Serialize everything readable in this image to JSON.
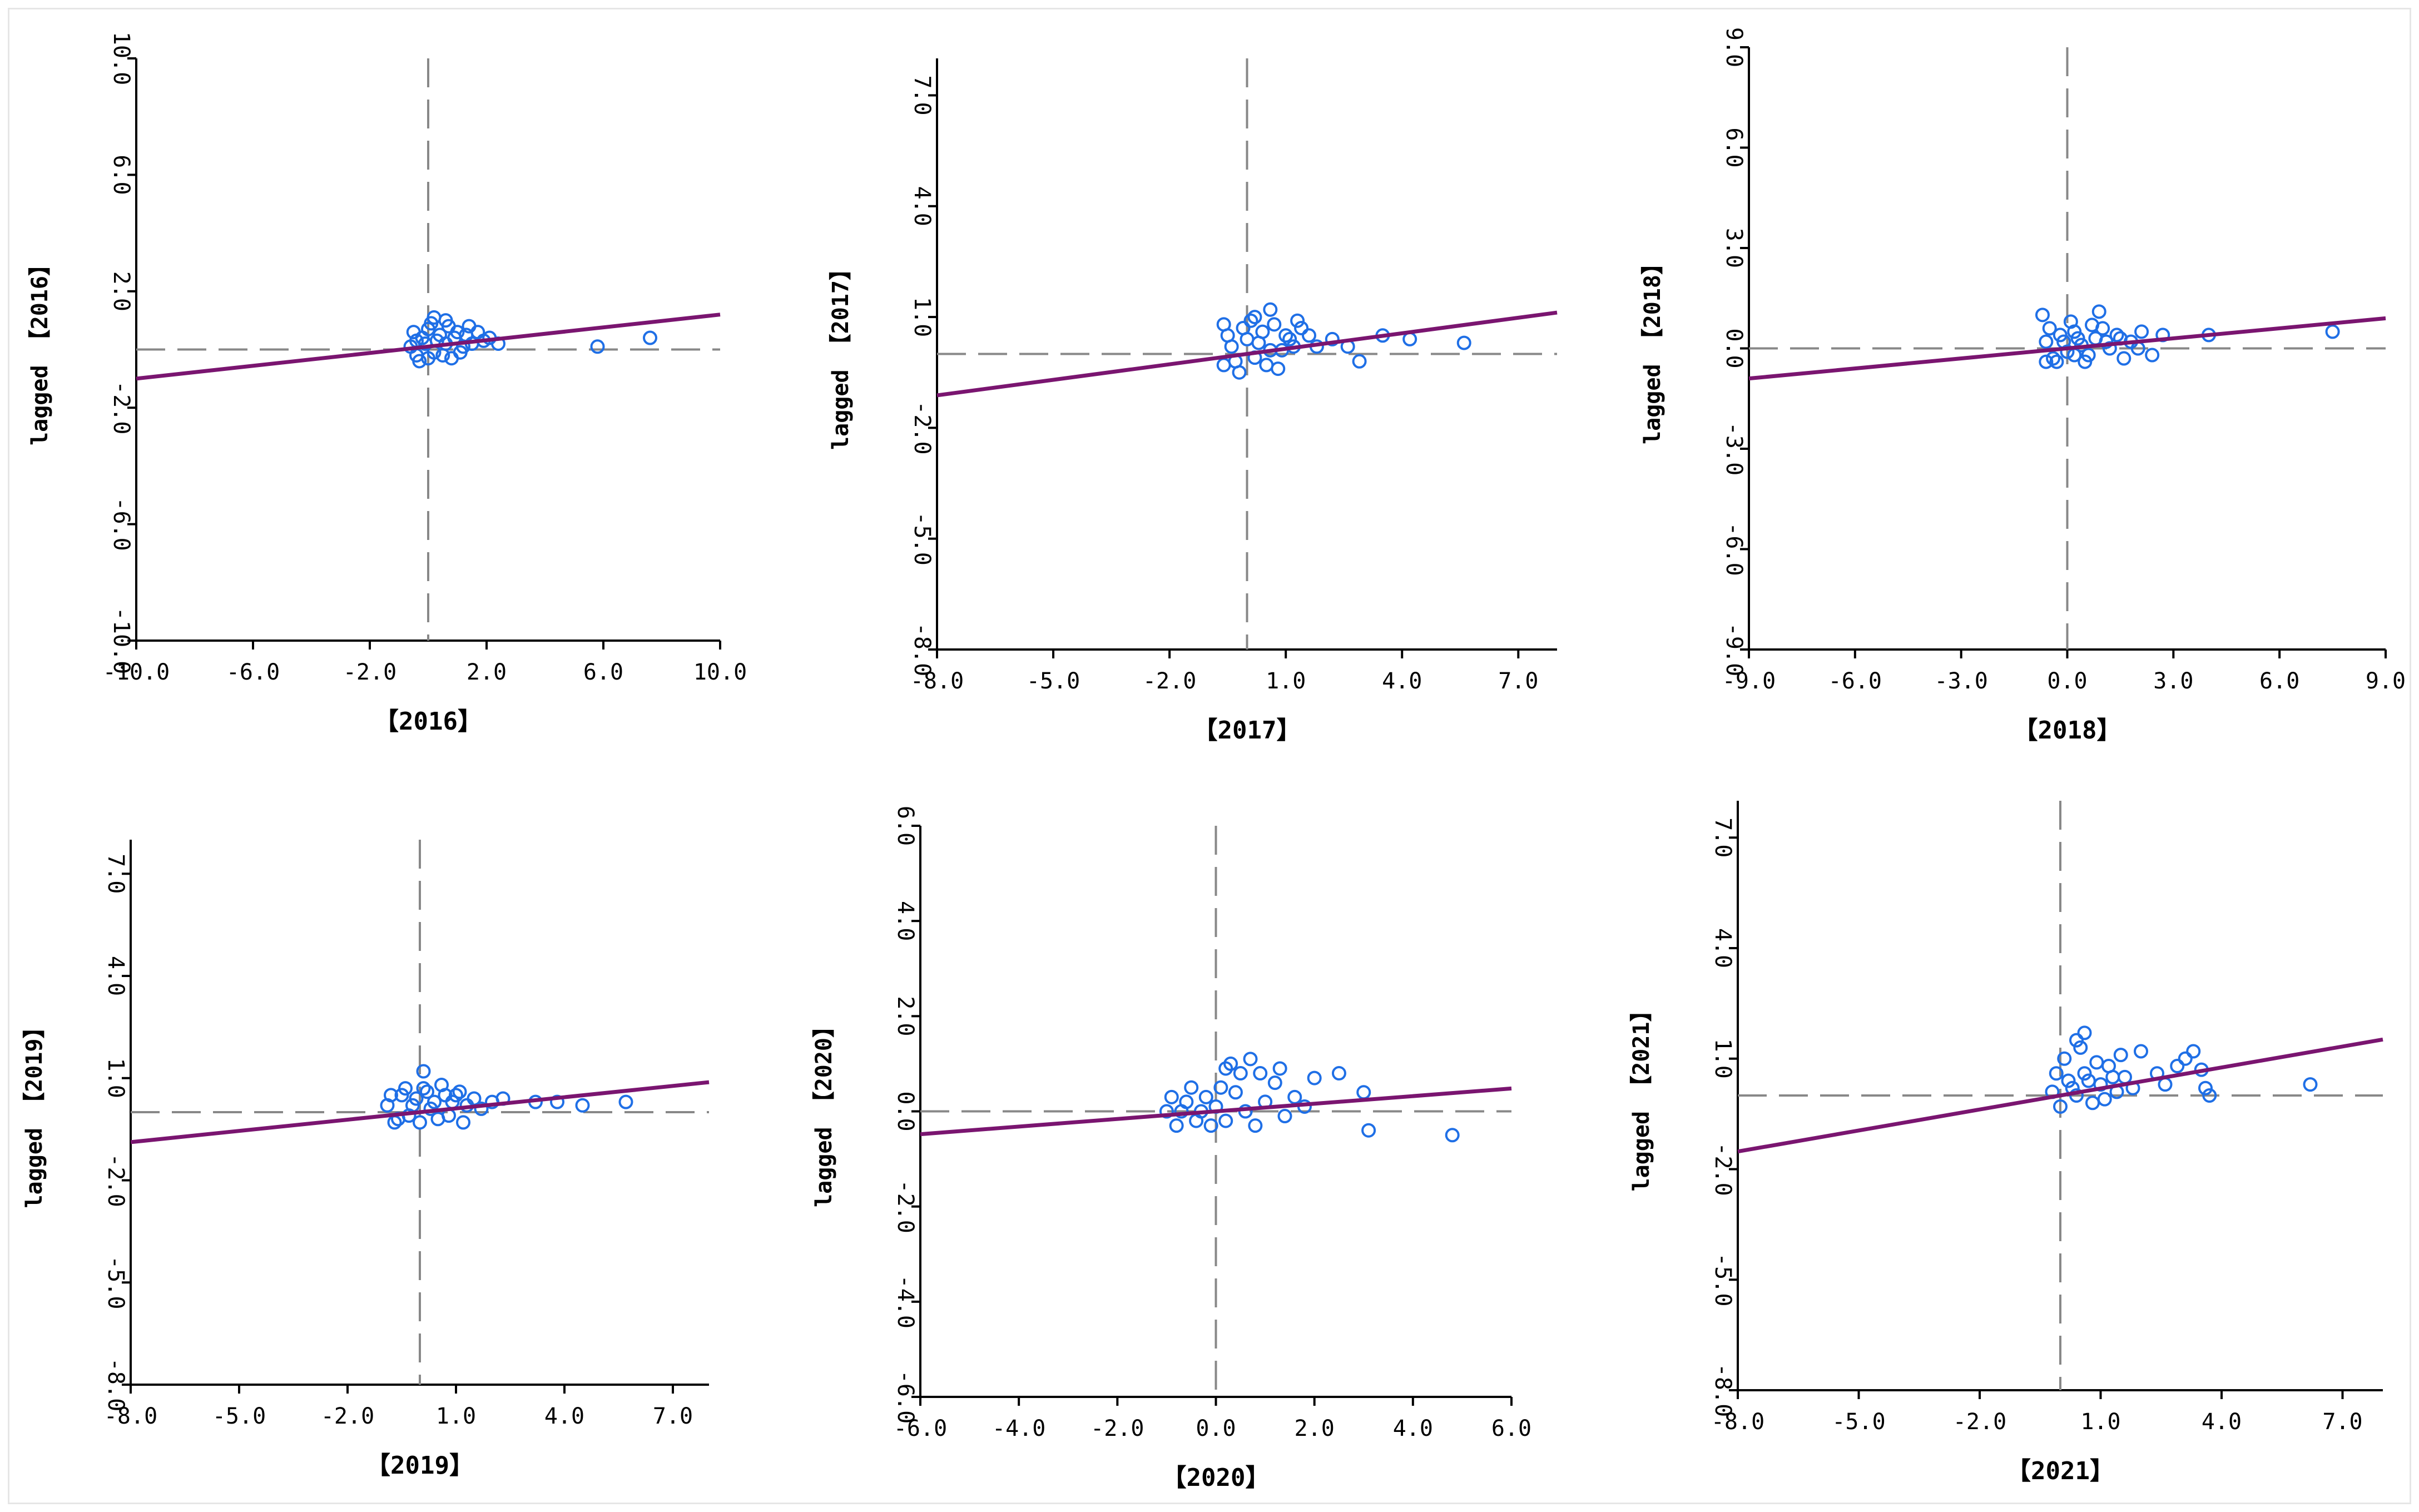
{
  "colors": {
    "points": "#1f6fe6",
    "trend": "#7a1570",
    "ref": "#888888",
    "axis": "#000000"
  },
  "chart_data": [
    {
      "type": "scatter",
      "xlabel": "【2016】",
      "ylabel": "lagged 【2016】",
      "xlim": [
        -10,
        10
      ],
      "ylim": [
        -10,
        10
      ],
      "xticks": [
        "-10.0",
        "-6.0",
        "-2.0",
        "2.0",
        "6.0",
        "10.0"
      ],
      "yticks": [
        "-10.0",
        "-6.0",
        "-2.0",
        "2.0",
        "6.0",
        "10.0"
      ],
      "slope": 0.11,
      "intercept": 0.1,
      "points": [
        [
          -0.6,
          0.1
        ],
        [
          -0.4,
          -0.2
        ],
        [
          -0.2,
          0.4
        ],
        [
          0,
          0.7
        ],
        [
          0.2,
          -0.1
        ],
        [
          0.4,
          0.5
        ],
        [
          0.6,
          0.2
        ],
        [
          0.8,
          -0.3
        ],
        [
          1,
          0.6
        ],
        [
          1.2,
          0.1
        ],
        [
          -0.5,
          0.6
        ],
        [
          -0.3,
          -0.4
        ],
        [
          0.1,
          0.9
        ],
        [
          0.3,
          0.3
        ],
        [
          0.5,
          -0.2
        ],
        [
          0.7,
          0.8
        ],
        [
          0.9,
          0.4
        ],
        [
          1.1,
          -0.1
        ],
        [
          1.3,
          0.5
        ],
        [
          1.5,
          0.2
        ],
        [
          1.7,
          0.6
        ],
        [
          1.9,
          0.3
        ],
        [
          2.1,
          0.4
        ],
        [
          2.4,
          0.2
        ],
        [
          -0.1,
          0.2
        ],
        [
          0.0,
          -0.3
        ],
        [
          0.6,
          1.0
        ],
        [
          1.4,
          0.8
        ],
        [
          -0.4,
          0.3
        ],
        [
          0.2,
          1.1
        ],
        [
          5.8,
          0.1
        ],
        [
          7.6,
          0.4
        ]
      ]
    },
    {
      "type": "scatter",
      "xlabel": "【2017】",
      "ylabel": "lagged 【2017】",
      "xlim": [
        -8,
        8
      ],
      "ylim": [
        -8,
        8
      ],
      "xticks": [
        "-8.0",
        "-5.0",
        "-2.0",
        "1.0",
        "4.0",
        "7.0"
      ],
      "yticks": [
        "-8.0",
        "-5.0",
        "-2.0",
        "1.0",
        "4.0",
        "7.0"
      ],
      "slope": 0.14,
      "intercept": 0.0,
      "points": [
        [
          -0.6,
          -0.3
        ],
        [
          -0.4,
          0.2
        ],
        [
          -0.2,
          -0.5
        ],
        [
          0,
          0.4
        ],
        [
          0.2,
          -0.1
        ],
        [
          0.4,
          0.6
        ],
        [
          0.6,
          0.1
        ],
        [
          0.8,
          -0.4
        ],
        [
          1,
          0.5
        ],
        [
          1.2,
          0.2
        ],
        [
          1.4,
          0.7
        ],
        [
          -0.5,
          0.5
        ],
        [
          -0.3,
          -0.2
        ],
        [
          0.1,
          0.9
        ],
        [
          0.3,
          0.3
        ],
        [
          0.5,
          -0.3
        ],
        [
          0.7,
          0.8
        ],
        [
          0.9,
          0.1
        ],
        [
          1.1,
          0.4
        ],
        [
          1.3,
          0.9
        ],
        [
          1.6,
          0.5
        ],
        [
          -0.1,
          0.7
        ],
        [
          0.2,
          1.0
        ],
        [
          0.6,
          1.2
        ],
        [
          -0.6,
          0.8
        ],
        [
          1.8,
          0.2
        ],
        [
          2.2,
          0.4
        ],
        [
          2.6,
          0.2
        ],
        [
          3.5,
          0.5
        ],
        [
          4.2,
          0.4
        ],
        [
          5.6,
          0.3
        ],
        [
          2.9,
          -0.2
        ]
      ]
    },
    {
      "type": "scatter",
      "xlabel": "【2018】",
      "ylabel": "lagged 【2018】",
      "xlim": [
        -9,
        9
      ],
      "ylim": [
        -9,
        9
      ],
      "xticks": [
        "-9.0",
        "-6.0",
        "-3.0",
        "0.0",
        "3.0",
        "6.0",
        "9.0"
      ],
      "yticks": [
        "-9.0",
        "-6.0",
        "-3.0",
        "0.0",
        "3.0",
        "6.0",
        "9.0"
      ],
      "slope": 0.1,
      "intercept": 0.0,
      "points": [
        [
          -0.6,
          0.2
        ],
        [
          -0.4,
          -0.3
        ],
        [
          -0.2,
          0.4
        ],
        [
          0,
          -0.1
        ],
        [
          0.2,
          0.5
        ],
        [
          0.4,
          0.1
        ],
        [
          0.6,
          -0.2
        ],
        [
          0.8,
          0.3
        ],
        [
          1,
          0.6
        ],
        [
          1.2,
          0.0
        ],
        [
          1.4,
          0.4
        ],
        [
          1.6,
          -0.3
        ],
        [
          1.8,
          0.2
        ],
        [
          2.1,
          0.5
        ],
        [
          2.4,
          -0.2
        ],
        [
          2.7,
          0.4
        ],
        [
          -0.5,
          0.6
        ],
        [
          -0.3,
          -0.4
        ],
        [
          0.1,
          0.8
        ],
        [
          0.3,
          0.3
        ],
        [
          0.5,
          -0.4
        ],
        [
          0.7,
          0.7
        ],
        [
          0.9,
          1.1
        ],
        [
          1.1,
          0.2
        ],
        [
          -0.1,
          0.2
        ],
        [
          0.2,
          -0.2
        ],
        [
          -0.6,
          -0.4
        ],
        [
          1.5,
          0.3
        ],
        [
          2.0,
          0.0
        ],
        [
          4.0,
          0.4
        ],
        [
          7.5,
          0.5
        ],
        [
          -0.7,
          1.0
        ]
      ]
    },
    {
      "type": "scatter",
      "xlabel": "【2019】",
      "ylabel": "lagged 【2019】",
      "xlim": [
        -8,
        8
      ],
      "ylim": [
        -8,
        8
      ],
      "xticks": [
        "-8.0",
        "-5.0",
        "-2.0",
        "1.0",
        "4.0",
        "7.0"
      ],
      "yticks": [
        "-8.0",
        "-5.0",
        "-2.0",
        "1.0",
        "4.0",
        "7.0"
      ],
      "slope": 0.11,
      "intercept": 0.0,
      "points": [
        [
          -0.9,
          0.2
        ],
        [
          -0.7,
          -0.3
        ],
        [
          -0.5,
          0.5
        ],
        [
          -0.3,
          -0.1
        ],
        [
          -0.1,
          0.4
        ],
        [
          0.1,
          0.7
        ],
        [
          0.3,
          0.1
        ],
        [
          0.5,
          -0.2
        ],
        [
          0.7,
          0.5
        ],
        [
          0.9,
          0.3
        ],
        [
          1.1,
          0.6
        ],
        [
          1.3,
          0.2
        ],
        [
          1.5,
          0.4
        ],
        [
          1.7,
          0.1
        ],
        [
          -0.8,
          0.5
        ],
        [
          -0.6,
          -0.2
        ],
        [
          -0.4,
          0.7
        ],
        [
          -0.2,
          0.2
        ],
        [
          0.0,
          -0.3
        ],
        [
          0.2,
          0.6
        ],
        [
          0.4,
          0.3
        ],
        [
          0.6,
          0.8
        ],
        [
          0.8,
          -0.1
        ],
        [
          1.0,
          0.5
        ],
        [
          1.2,
          -0.3
        ],
        [
          0.1,
          1.2
        ],
        [
          2.0,
          0.3
        ],
        [
          2.3,
          0.4
        ],
        [
          3.2,
          0.3
        ],
        [
          3.8,
          0.3
        ],
        [
          4.5,
          0.2
        ],
        [
          5.7,
          0.3
        ]
      ]
    },
    {
      "type": "scatter",
      "xlabel": "【2020】",
      "ylabel": "lagged 【2020】",
      "xlim": [
        -6,
        6
      ],
      "ylim": [
        -6,
        6
      ],
      "xticks": [
        "-6.0",
        "-4.0",
        "-2.0",
        "0.0",
        "2.0",
        "4.0",
        "6.0"
      ],
      "yticks": [
        "-6.0",
        "-4.0",
        "-2.0",
        "0.0",
        "2.0",
        "4.0",
        "6.0"
      ],
      "slope": 0.08,
      "intercept": 0.0,
      "points": [
        [
          -1.0,
          0.0
        ],
        [
          -0.8,
          -0.3
        ],
        [
          -0.6,
          0.2
        ],
        [
          -0.4,
          -0.2
        ],
        [
          -0.2,
          0.3
        ],
        [
          0.0,
          0.1
        ],
        [
          0.2,
          -0.2
        ],
        [
          0.4,
          0.4
        ],
        [
          0.6,
          0.0
        ],
        [
          0.8,
          -0.3
        ],
        [
          1.0,
          0.2
        ],
        [
          1.2,
          0.6
        ],
        [
          1.4,
          -0.1
        ],
        [
          1.6,
          0.3
        ],
        [
          1.8,
          0.1
        ],
        [
          -0.9,
          0.3
        ],
        [
          -0.7,
          0.0
        ],
        [
          -0.5,
          0.5
        ],
        [
          -0.3,
          0.0
        ],
        [
          -0.1,
          -0.3
        ],
        [
          0.1,
          0.5
        ],
        [
          0.3,
          1.0
        ],
        [
          0.5,
          0.8
        ],
        [
          0.7,
          1.1
        ],
        [
          0.9,
          0.8
        ],
        [
          0.2,
          0.9
        ],
        [
          1.3,
          0.9
        ],
        [
          2.0,
          0.7
        ],
        [
          2.5,
          0.8
        ],
        [
          3.0,
          0.4
        ],
        [
          3.1,
          -0.4
        ],
        [
          4.8,
          -0.5
        ]
      ]
    },
    {
      "type": "scatter",
      "xlabel": "【2021】",
      "ylabel": "lagged 【2021】",
      "xlim": [
        -8,
        8
      ],
      "ylim": [
        -8,
        8
      ],
      "xticks": [
        "-8.0",
        "-5.0",
        "-2.0",
        "1.0",
        "4.0",
        "7.0"
      ],
      "yticks": [
        "-8.0",
        "-5.0",
        "-2.0",
        "1.0",
        "4.0",
        "7.0"
      ],
      "slope": 0.19,
      "intercept": 0.0,
      "points": [
        [
          -0.2,
          0.1
        ],
        [
          0.0,
          -0.3
        ],
        [
          0.2,
          0.4
        ],
        [
          0.4,
          0.0
        ],
        [
          0.6,
          0.6
        ],
        [
          0.8,
          -0.2
        ],
        [
          1.0,
          0.3
        ],
        [
          1.2,
          0.8
        ],
        [
          1.4,
          0.1
        ],
        [
          1.6,
          0.5
        ],
        [
          1.8,
          0.2
        ],
        [
          -0.1,
          0.6
        ],
        [
          0.1,
          1.0
        ],
        [
          0.3,
          0.2
        ],
        [
          0.5,
          1.3
        ],
        [
          0.7,
          0.4
        ],
        [
          0.9,
          0.9
        ],
        [
          1.1,
          -0.1
        ],
        [
          1.3,
          0.5
        ],
        [
          1.5,
          1.1
        ],
        [
          0.4,
          1.5
        ],
        [
          0.6,
          1.7
        ],
        [
          2.0,
          1.2
        ],
        [
          2.4,
          0.6
        ],
        [
          2.6,
          0.3
        ],
        [
          2.9,
          0.8
        ],
        [
          3.1,
          1.0
        ],
        [
          3.3,
          1.2
        ],
        [
          3.5,
          0.7
        ],
        [
          3.6,
          0.2
        ],
        [
          3.7,
          0.0
        ],
        [
          6.2,
          0.3
        ]
      ]
    }
  ]
}
